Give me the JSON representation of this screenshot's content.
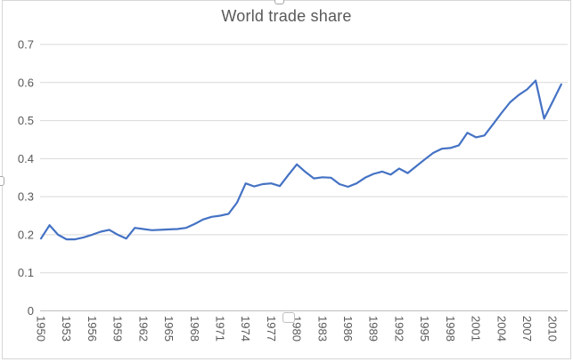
{
  "chart_title": "World trade share",
  "chart_data": {
    "type": "line",
    "title": "World trade share",
    "xlabel": "",
    "ylabel": "",
    "ylim": [
      0,
      0.7
    ],
    "grid": true,
    "legend": "none",
    "start_year": 1950,
    "end_year": 2011,
    "x_tick_labels": [
      "1950",
      "1953",
      "1956",
      "1959",
      "1962",
      "1965",
      "1968",
      "1971",
      "1974",
      "1977",
      "1980",
      "1983",
      "1986",
      "1989",
      "1992",
      "1995",
      "1998",
      "2001",
      "2004",
      "2007",
      "2010"
    ],
    "y_tick_labels": [
      "0.7",
      "0.6",
      "0.5",
      "0.4",
      "0.3",
      "0.2",
      "0.1",
      "0"
    ],
    "series": [
      {
        "name": "World trade share",
        "color": "#4472C4",
        "values": [
          0.19,
          0.225,
          0.2,
          0.188,
          0.188,
          0.193,
          0.2,
          0.208,
          0.213,
          0.2,
          0.19,
          0.218,
          0.215,
          0.212,
          0.213,
          0.214,
          0.215,
          0.218,
          0.228,
          0.24,
          0.247,
          0.25,
          0.255,
          0.285,
          0.335,
          0.327,
          0.333,
          0.335,
          0.328,
          0.357,
          0.385,
          0.365,
          0.348,
          0.351,
          0.35,
          0.333,
          0.326,
          0.335,
          0.35,
          0.36,
          0.366,
          0.358,
          0.374,
          0.362,
          0.38,
          0.398,
          0.415,
          0.426,
          0.428,
          0.435,
          0.468,
          0.456,
          0.461,
          0.49,
          0.52,
          0.548,
          0.567,
          0.582,
          0.605,
          0.505,
          0.55,
          0.595
        ]
      }
    ],
    "colors": {
      "line": "#4472C4",
      "gridline": "#D9D9D9",
      "axis_line": "#BFBFBF",
      "text": "#595959",
      "background": "#FFFFFF"
    }
  }
}
